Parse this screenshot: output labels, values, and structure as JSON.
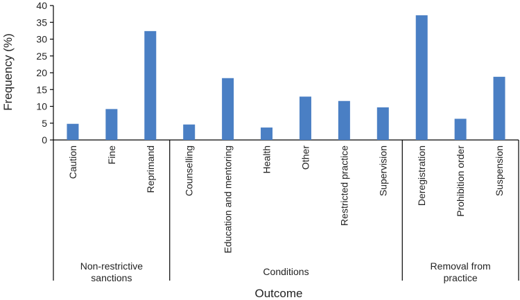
{
  "chart_data": {
    "type": "bar",
    "title": "",
    "xlabel": "Outcome",
    "ylabel": "Frequency (%)",
    "ylim": [
      0,
      40
    ],
    "yticks": [
      0,
      5,
      10,
      15,
      20,
      25,
      30,
      35,
      40
    ],
    "grid": false,
    "bar_color": "#4a7fc4",
    "categories": [
      "Caution",
      "Fine",
      "Reprimand",
      "Counselling",
      "Education and mentoring",
      "Health",
      "Other",
      "Restricted practice",
      "Supervision",
      "Deregistration",
      "Prohibition order",
      "Suspension"
    ],
    "values": [
      4.8,
      9.2,
      32.4,
      4.6,
      18.4,
      3.7,
      12.9,
      11.6,
      9.7,
      37.1,
      6.3,
      18.8
    ],
    "groups": [
      {
        "label_lines": [
          "Non-restrictive",
          "sanctions"
        ],
        "count": 3
      },
      {
        "label_lines": [
          "Conditions"
        ],
        "count": 6
      },
      {
        "label_lines": [
          "Removal from",
          "practice"
        ],
        "count": 3
      }
    ]
  }
}
